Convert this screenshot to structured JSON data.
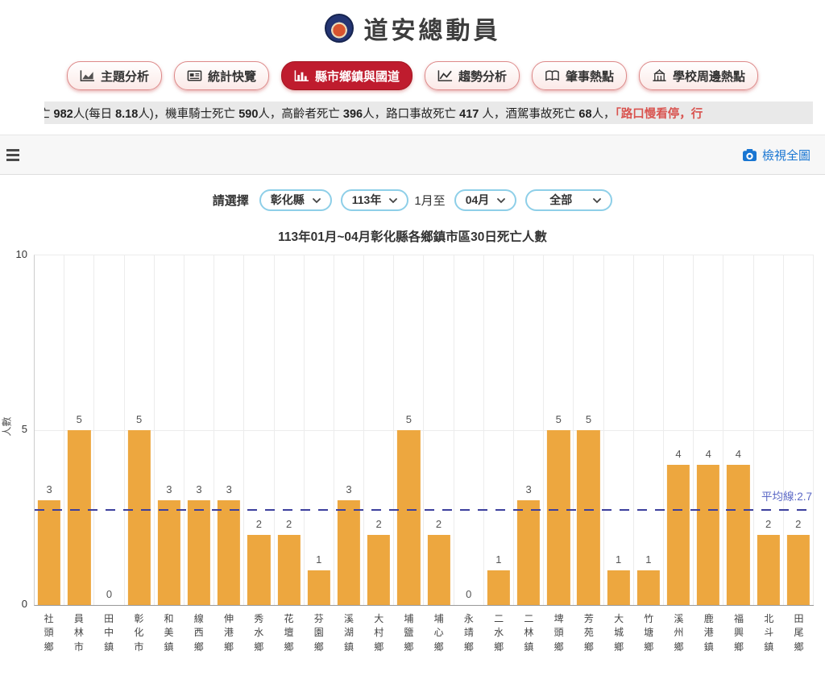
{
  "header": {
    "title": "道安總動員"
  },
  "tabs": [
    {
      "id": "tab-theme-analysis",
      "label": "主題分析",
      "icon": "area-chart-icon",
      "active": false
    },
    {
      "id": "tab-stats-overview",
      "label": "統計快覽",
      "icon": "news-icon",
      "active": false
    },
    {
      "id": "tab-county-township",
      "label": "縣市鄉鎮與國道",
      "icon": "bar-chart-icon",
      "active": true
    },
    {
      "id": "tab-trend-analysis",
      "label": "趨勢分析",
      "icon": "trend-chart-icon",
      "active": false
    },
    {
      "id": "tab-accident-hotspot",
      "label": "肇事熱點",
      "icon": "map-book-icon",
      "active": false
    },
    {
      "id": "tab-school-hotspot",
      "label": "學校周邊熱點",
      "icon": "school-icon",
      "active": false
    }
  ],
  "ticker": {
    "segments": [
      {
        "text": "亡 982人(每日 8.18人)，機車騎士死亡 590人，高齡者死亡 396人，路口事故死亡 417 人，酒駕事故死亡 68人，",
        "highlight": false
      },
      {
        "text": "「路口慢看停，行",
        "highlight": true
      }
    ]
  },
  "toolbar": {
    "view_full_label": "檢視全圖"
  },
  "filters": {
    "label": "請選擇",
    "county": "彰化縣",
    "year": "113年",
    "month_from_text": "1月至",
    "month_to": "04月",
    "category": "全部"
  },
  "chart_data": {
    "type": "bar",
    "title": "113年01月~04月彰化縣各鄉鎮市區30日死亡人數",
    "xlabel": "",
    "ylabel": "人數",
    "ylim": [
      0,
      10
    ],
    "yticks": [
      0,
      5,
      10
    ],
    "grid": true,
    "bar_color": "#eda73f",
    "average_line": {
      "value": 2.7,
      "label": "平均線:2.7",
      "color": "#3c3f9d"
    },
    "categories": [
      "社頭鄉",
      "員林市",
      "田中鎮",
      "彰化市",
      "和美鎮",
      "線西鄉",
      "伸港鄉",
      "秀水鄉",
      "花壇鄉",
      "芬園鄉",
      "溪湖鎮",
      "大村鄉",
      "埔鹽鄉",
      "埔心鄉",
      "永靖鄉",
      "二水鄉",
      "二林鎮",
      "埤頭鄉",
      "芳苑鄉",
      "大城鄉",
      "竹塘鄉",
      "溪州鄉",
      "鹿港鎮",
      "福興鄉",
      "北斗鎮",
      "田尾鄉"
    ],
    "values": [
      3,
      5,
      0,
      5,
      3,
      3,
      3,
      2,
      2,
      1,
      3,
      2,
      5,
      2,
      0,
      1,
      3,
      5,
      5,
      1,
      1,
      4,
      4,
      4,
      2,
      2
    ]
  }
}
